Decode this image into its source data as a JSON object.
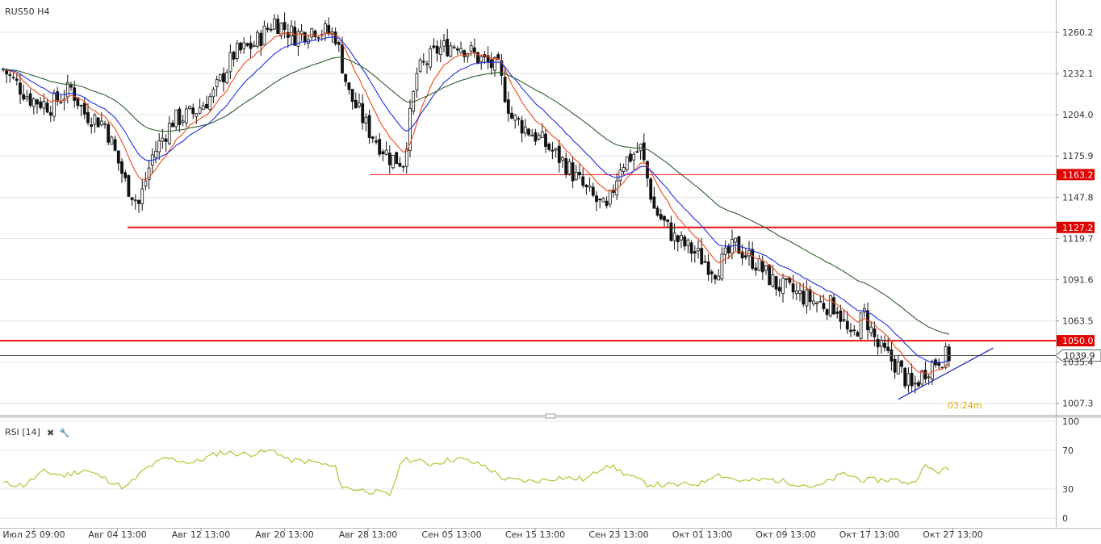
{
  "chart_data": [
    {
      "type": "candlestick",
      "title": "RUS50 H4",
      "ylim": [
        1000,
        1280
      ],
      "y_ticks": [
        "1260.2",
        "1232.1",
        "1204.0",
        "1175.9",
        "1147.8",
        "1119.7",
        "1091.6",
        "1063.5",
        "1035.4",
        "1007.3"
      ],
      "y_tick_values": [
        1260.2,
        1232.1,
        1204.0,
        1175.9,
        1147.8,
        1119.7,
        1091.6,
        1063.5,
        1035.4,
        1007.3
      ],
      "x_labels": [
        "Июл 25 09:00",
        "Авг 04 13:00",
        "Авг 12 13:00",
        "Авг 20 13:00",
        "Авг 28 13:00",
        "Сен 05 13:00",
        "Сен 15 13:00",
        "Сен 23 13:00",
        "Окт 01 13:00",
        "Окт 09 13:00",
        "Окт 17 13:00",
        "Окт 27 13:00"
      ],
      "bar_count": 280,
      "close_path": [
        [
          0,
          1235
        ],
        [
          8,
          1215
        ],
        [
          14,
          1210
        ],
        [
          20,
          1222
        ],
        [
          24,
          1205
        ],
        [
          30,
          1198
        ],
        [
          36,
          1158
        ],
        [
          40,
          1143
        ],
        [
          44,
          1176
        ],
        [
          50,
          1200
        ],
        [
          56,
          1205
        ],
        [
          62,
          1218
        ],
        [
          68,
          1245
        ],
        [
          74,
          1252
        ],
        [
          80,
          1268
        ],
        [
          86,
          1258
        ],
        [
          92,
          1263
        ],
        [
          98,
          1258
        ],
        [
          102,
          1218
        ],
        [
          108,
          1193
        ],
        [
          114,
          1175
        ],
        [
          118,
          1172
        ],
        [
          122,
          1232
        ],
        [
          128,
          1248
        ],
        [
          134,
          1253
        ],
        [
          140,
          1243
        ],
        [
          146,
          1235
        ],
        [
          150,
          1202
        ],
        [
          158,
          1188
        ],
        [
          166,
          1170
        ],
        [
          172,
          1152
        ],
        [
          178,
          1138
        ],
        [
          182,
          1170
        ],
        [
          188,
          1181
        ],
        [
          192,
          1140
        ],
        [
          198,
          1120
        ],
        [
          204,
          1110
        ],
        [
          210,
          1098
        ],
        [
          216,
          1115
        ],
        [
          222,
          1103
        ],
        [
          228,
          1088
        ],
        [
          234,
          1082
        ],
        [
          240,
          1076
        ],
        [
          246,
          1073
        ],
        [
          250,
          1050
        ],
        [
          254,
          1068
        ],
        [
          258,
          1046
        ],
        [
          264,
          1032
        ],
        [
          268,
          1017
        ],
        [
          272,
          1030
        ],
        [
          276,
          1038
        ],
        [
          279,
          1040
        ]
      ],
      "horizontal_levels": [
        {
          "value": 1163.2,
          "label": "1163.2",
          "color": "#ee1111"
        },
        {
          "value": 1127.2,
          "label": "1127.2",
          "color": "#ee1111"
        },
        {
          "value": 1050.0,
          "label": "1050.0",
          "color": "#ee1111"
        }
      ],
      "current_price": {
        "value": 1039.9,
        "label": "1039.9"
      },
      "trendline": {
        "from": [
          264,
          1010
        ],
        "to": [
          292,
          1045
        ],
        "color": "#1a23b8"
      },
      "countdown": "03:24m",
      "moving_averages": [
        {
          "period": 10,
          "color": "#f04a1a"
        },
        {
          "period": 20,
          "color": "#1f2ee0"
        },
        {
          "period": 50,
          "color": "#2e5e2e"
        }
      ],
      "colors": {
        "bull": "#ffffff",
        "bear": "#111111",
        "wick": "#111111",
        "grid": "#e4e4e4"
      }
    },
    {
      "type": "line",
      "title": "RSI [14]",
      "ylim": [
        0,
        100
      ],
      "y_ticks": [
        "100",
        "70",
        "30",
        "0"
      ],
      "y_tick_values": [
        100,
        70,
        30,
        0
      ],
      "color": "#a8c832",
      "values_path": [
        [
          0,
          36
        ],
        [
          6,
          34
        ],
        [
          12,
          48
        ],
        [
          18,
          44
        ],
        [
          24,
          50
        ],
        [
          30,
          41
        ],
        [
          36,
          31
        ],
        [
          42,
          51
        ],
        [
          48,
          62
        ],
        [
          56,
          57
        ],
        [
          64,
          68
        ],
        [
          72,
          66
        ],
        [
          80,
          70
        ],
        [
          84,
          60
        ],
        [
          92,
          58
        ],
        [
          98,
          52
        ],
        [
          100,
          32
        ],
        [
          108,
          28
        ],
        [
          114,
          24
        ],
        [
          118,
          62
        ],
        [
          126,
          56
        ],
        [
          134,
          62
        ],
        [
          142,
          54
        ],
        [
          148,
          40
        ],
        [
          156,
          38
        ],
        [
          164,
          42
        ],
        [
          172,
          40
        ],
        [
          178,
          56
        ],
        [
          184,
          45
        ],
        [
          190,
          35
        ],
        [
          198,
          34
        ],
        [
          206,
          36
        ],
        [
          210,
          46
        ],
        [
          218,
          38
        ],
        [
          226,
          40
        ],
        [
          232,
          37
        ],
        [
          240,
          32
        ],
        [
          248,
          46
        ],
        [
          254,
          39
        ],
        [
          262,
          40
        ],
        [
          268,
          36
        ],
        [
          272,
          53
        ],
        [
          276,
          48
        ],
        [
          279,
          51
        ]
      ]
    }
  ]
}
